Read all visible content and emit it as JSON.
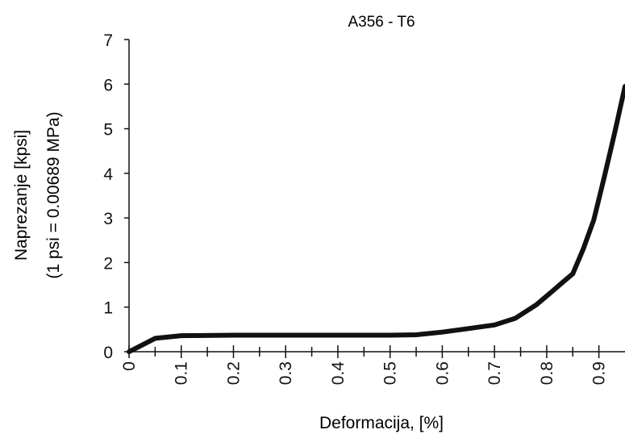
{
  "chart_data": {
    "type": "line",
    "title": "A356 - T6",
    "xlabel": "Deformacija, [%]",
    "ylabel_lines": [
      "Naprezanje [kpsi]",
      "(1 psi = 0.00689 MPa)"
    ],
    "xlim": [
      0,
      0.95
    ],
    "ylim": [
      0,
      7
    ],
    "xticks": [
      0,
      0.1,
      0.2,
      0.3,
      0.4,
      0.5,
      0.6,
      0.7,
      0.8,
      0.9
    ],
    "xtick_labels": [
      "0",
      "0.1",
      "0.2",
      "0.3",
      "0.4",
      "0.5",
      "0.6",
      "0.7",
      "0.8",
      "0.9"
    ],
    "xticks_minor": [
      0.05,
      0.15,
      0.25,
      0.35,
      0.45,
      0.55,
      0.65,
      0.75,
      0.85
    ],
    "yticks": [
      0,
      1,
      2,
      3,
      4,
      5,
      6,
      7
    ],
    "ytick_labels": [
      "0",
      "1",
      "2",
      "3",
      "4",
      "5",
      "6",
      "7"
    ],
    "grid": false,
    "series": [
      {
        "color": "#111111",
        "x": [
          0,
          0.02,
          0.05,
          0.1,
          0.2,
          0.3,
          0.4,
          0.5,
          0.55,
          0.6,
          0.65,
          0.7,
          0.74,
          0.78,
          0.81,
          0.83,
          0.85,
          0.87,
          0.89,
          0.91,
          0.93,
          0.95
        ],
        "y": [
          0,
          0.12,
          0.3,
          0.36,
          0.37,
          0.37,
          0.37,
          0.37,
          0.38,
          0.44,
          0.52,
          0.6,
          0.75,
          1.05,
          1.35,
          1.55,
          1.75,
          2.3,
          2.95,
          3.9,
          4.9,
          5.95
        ]
      }
    ]
  }
}
